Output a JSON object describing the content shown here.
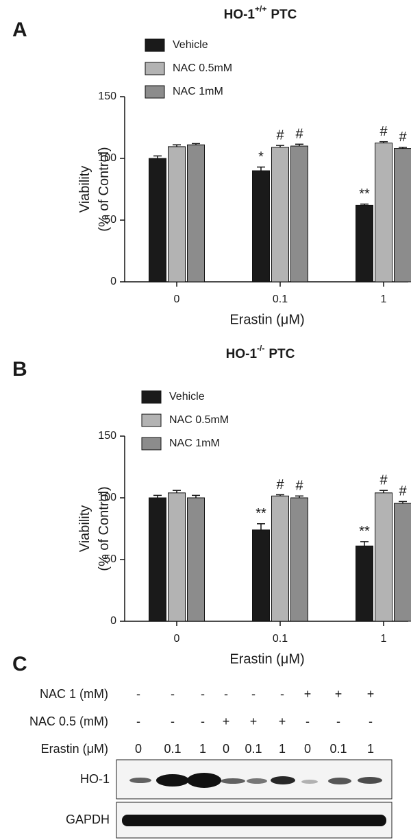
{
  "chart_data": [
    {
      "type": "bar",
      "panel": "A",
      "title": [
        "HO-1",
        "+/+",
        "PTC"
      ],
      "categories": [
        "0",
        "0.1",
        "1"
      ],
      "xlabel": "Erastin (μM)",
      "ylabel": [
        "Viability",
        "(% of Control)"
      ],
      "ylim": [
        0,
        150
      ],
      "yticks": [
        0,
        50,
        100,
        150
      ],
      "series": [
        {
          "name": "Vehicle",
          "color": "#1a1a1a",
          "values": [
            100,
            90,
            62
          ],
          "errors": [
            2,
            3,
            1
          ],
          "annotations": [
            null,
            "*",
            "**"
          ]
        },
        {
          "name": "NAC 0.5mM",
          "color": "#b3b3b3",
          "values": [
            109.5,
            109,
            112.5
          ],
          "errors": [
            1.5,
            1.5,
            1
          ],
          "annotations": [
            null,
            "#",
            "#"
          ]
        },
        {
          "name": "NAC 1mM",
          "color": "#8c8c8c",
          "values": [
            111,
            110,
            108
          ],
          "errors": [
            1,
            1.5,
            1
          ],
          "annotations": [
            null,
            "#",
            "#"
          ]
        }
      ]
    },
    {
      "type": "bar",
      "panel": "B",
      "title": [
        "HO-1",
        "-/-",
        "PTC"
      ],
      "categories": [
        "0",
        "0.1",
        "1"
      ],
      "xlabel": "Erastin (μM)",
      "ylabel": [
        "Viability",
        "(% of Control)"
      ],
      "ylim": [
        0,
        150
      ],
      "yticks": [
        0,
        50,
        100,
        150
      ],
      "series": [
        {
          "name": "Vehicle",
          "color": "#1a1a1a",
          "values": [
            100,
            74,
            61
          ],
          "errors": [
            2,
            5,
            3.5
          ],
          "annotations": [
            null,
            "**",
            "**"
          ]
        },
        {
          "name": "NAC 0.5mM",
          "color": "#b3b3b3",
          "values": [
            104,
            101.5,
            104
          ],
          "errors": [
            2,
            1,
            2
          ],
          "annotations": [
            null,
            "#",
            "#"
          ]
        },
        {
          "name": "NAC 1mM",
          "color": "#8c8c8c",
          "values": [
            100,
            100,
            95.5
          ],
          "errors": [
            2,
            1.5,
            1.5
          ],
          "annotations": [
            null,
            "#",
            "#"
          ]
        }
      ]
    }
  ],
  "blot": {
    "panel": "C",
    "rows": [
      {
        "label": "NAC 1 (mM)",
        "values": [
          "-",
          "-",
          "-",
          "-",
          "-",
          "-",
          "+",
          "+",
          "+"
        ]
      },
      {
        "label": "NAC 0.5 (mM)",
        "values": [
          "-",
          "-",
          "-",
          "+",
          "+",
          "+",
          "-",
          "-",
          "-"
        ]
      },
      {
        "label": "Erastin (μM)",
        "values": [
          "0",
          "0.1",
          "1",
          "0",
          "0.1",
          "1",
          "0",
          "0.1",
          "1"
        ]
      }
    ],
    "lanes": [
      "HO-1",
      "GAPDH"
    ]
  }
}
